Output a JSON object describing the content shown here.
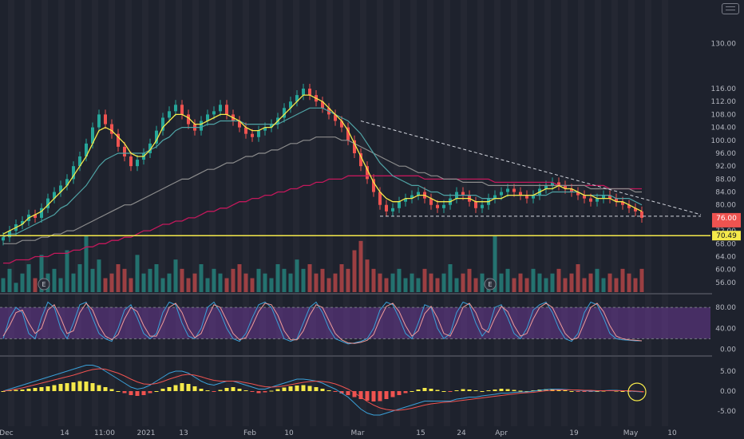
{
  "chart_data": [
    {
      "type": "candlestick",
      "title": "",
      "y_axis": {
        "tick_labels": [
          "130.00",
          "116.00",
          "112.00",
          "108.00",
          "104.00",
          "100.00",
          "96.00",
          "92.00",
          "88.00",
          "84.00",
          "80.00",
          "76.00",
          "72.00",
          "68.00",
          "64.00",
          "60.00",
          "56.00"
        ],
        "ylim": [
          53,
          138
        ]
      },
      "x_axis": {
        "tick_labels": [
          "Dec",
          "14",
          "11:00",
          "2021",
          "13",
          "Feb",
          "10",
          "Mar",
          "15",
          "24",
          "Apr",
          "19",
          "May",
          "10"
        ]
      },
      "price_labels": {
        "last_price": "76.00",
        "horizontal_line": "70.49"
      },
      "horizontal_line_value": 70.49,
      "support_line_value": 76.5,
      "close": [
        70,
        72,
        74,
        75,
        77,
        76,
        79,
        82,
        84,
        86,
        88,
        92,
        95,
        99,
        104,
        108,
        105,
        102,
        98,
        95,
        92,
        94,
        96,
        99,
        103,
        107,
        109,
        111,
        108,
        105,
        103,
        106,
        108,
        109,
        111,
        108,
        106,
        104,
        102,
        101,
        103,
        104,
        105,
        107,
        110,
        112,
        114,
        116,
        114,
        112,
        110,
        108,
        106,
        104,
        100,
        96,
        92,
        88,
        84,
        80,
        78,
        79,
        81,
        82,
        83,
        84,
        82,
        80,
        79,
        80,
        82,
        84,
        83,
        81,
        79,
        80,
        82,
        83,
        84,
        85,
        84,
        83,
        82,
        83,
        85,
        86,
        87,
        86,
        85,
        84,
        83,
        82,
        81,
        82,
        83,
        82,
        81,
        80,
        79,
        78,
        76
      ],
      "ema_fast": [
        71,
        72,
        73,
        74,
        76,
        77,
        78,
        80,
        82,
        84,
        86,
        89,
        92,
        95,
        99,
        103,
        104,
        103,
        101,
        99,
        96,
        95,
        95,
        97,
        100,
        104,
        106,
        108,
        108,
        107,
        105,
        105,
        106,
        107,
        108,
        108,
        107,
        106,
        104,
        103,
        103,
        104,
        104,
        106,
        108,
        110,
        112,
        114,
        114,
        113,
        112,
        110,
        108,
        106,
        103,
        99,
        95,
        91,
        87,
        84,
        82,
        81,
        81,
        82,
        82,
        83,
        83,
        82,
        81,
        81,
        81,
        82,
        82,
        82,
        81,
        81,
        81,
        82,
        82,
        83,
        83,
        83,
        83,
        83,
        84,
        85,
        85,
        86,
        85,
        85,
        84,
        83,
        83,
        82,
        82,
        82,
        81,
        81,
        80,
        79,
        78
      ],
      "ema_mid": [
        70,
        71,
        71,
        72,
        73,
        74,
        75,
        76,
        77,
        79,
        80,
        82,
        84,
        86,
        89,
        92,
        94,
        95,
        96,
        96,
        96,
        96,
        96,
        97,
        98,
        100,
        101,
        103,
        104,
        104,
        104,
        104,
        105,
        105,
        106,
        106,
        106,
        106,
        105,
        105,
        105,
        105,
        105,
        105,
        106,
        107,
        108,
        109,
        110,
        110,
        110,
        109,
        108,
        107,
        106,
        104,
        102,
        99,
        96,
        93,
        91,
        89,
        88,
        87,
        86,
        86,
        85,
        84,
        84,
        83,
        83,
        83,
        83,
        83,
        83,
        82,
        82,
        82,
        82,
        83,
        83,
        83,
        83,
        83,
        83,
        83,
        84,
        84,
        84,
        84,
        84,
        83,
        83,
        83,
        83,
        83,
        82,
        82,
        82,
        81,
        80
      ],
      "sma_slow": [
        68,
        68,
        68,
        69,
        69,
        69,
        70,
        70,
        71,
        71,
        72,
        72,
        73,
        74,
        75,
        76,
        77,
        78,
        79,
        80,
        80,
        81,
        82,
        83,
        84,
        85,
        86,
        87,
        88,
        88,
        89,
        90,
        91,
        91,
        92,
        93,
        93,
        94,
        95,
        95,
        96,
        96,
        97,
        97,
        98,
        99,
        99,
        100,
        100,
        101,
        101,
        101,
        101,
        100,
        100,
        99,
        98,
        97,
        96,
        95,
        94,
        93,
        92,
        92,
        91,
        90,
        90,
        89,
        89,
        88,
        88,
        88,
        87,
        87,
        87,
        87,
        86,
        86,
        86,
        86,
        86,
        86,
        86,
        86,
        86,
        86,
        86,
        86,
        86,
        86,
        86,
        86,
        85,
        85,
        85,
        85,
        85,
        85,
        85,
        84,
        84
      ],
      "sma_long": [
        62,
        62,
        63,
        63,
        63,
        64,
        64,
        64,
        65,
        65,
        65,
        66,
        66,
        67,
        67,
        68,
        68,
        69,
        69,
        70,
        70,
        71,
        72,
        72,
        73,
        74,
        74,
        75,
        75,
        76,
        76,
        77,
        78,
        78,
        79,
        79,
        80,
        81,
        81,
        82,
        82,
        83,
        83,
        84,
        84,
        85,
        85,
        86,
        86,
        87,
        87,
        88,
        88,
        88,
        89,
        89,
        89,
        89,
        89,
        89,
        89,
        89,
        89,
        89,
        89,
        89,
        88,
        88,
        88,
        88,
        88,
        88,
        88,
        88,
        88,
        88,
        88,
        87,
        87,
        87,
        87,
        87,
        87,
        87,
        87,
        87,
        87,
        86,
        86,
        86,
        86,
        86,
        86,
        86,
        86,
        85,
        85,
        85,
        85,
        85,
        85
      ],
      "volume": [
        3,
        5,
        2,
        4,
        6,
        3,
        8,
        4,
        5,
        3,
        9,
        4,
        6,
        12,
        5,
        7,
        3,
        4,
        6,
        5,
        3,
        8,
        4,
        5,
        6,
        3,
        4,
        7,
        5,
        3,
        4,
        6,
        3,
        5,
        4,
        3,
        5,
        6,
        4,
        3,
        5,
        4,
        3,
        6,
        5,
        4,
        7,
        5,
        6,
        4,
        5,
        3,
        4,
        6,
        5,
        9,
        11,
        7,
        5,
        4,
        3,
        4,
        5,
        3,
        4,
        3,
        5,
        4,
        3,
        4,
        6,
        3,
        4,
        5,
        3,
        4,
        3,
        12,
        4,
        5,
        3,
        4,
        3,
        5,
        4,
        3,
        4,
        5,
        3,
        4,
        6,
        3,
        4,
        5,
        3,
        4,
        3,
        5,
        4,
        3,
        5
      ]
    },
    {
      "type": "line",
      "title": "",
      "y_axis": {
        "tick_labels": [
          "80.00",
          "40.00",
          "0.00"
        ],
        "ylim": [
          -10,
          100
        ]
      },
      "series": [
        {
          "values": [
            20,
            60,
            80,
            70,
            30,
            20,
            60,
            90,
            80,
            40,
            20,
            50,
            85,
            90,
            60,
            30,
            20,
            15,
            40,
            75,
            85,
            60,
            30,
            20,
            30,
            70,
            90,
            85,
            50,
            25,
            20,
            40,
            80,
            90,
            70,
            40,
            20,
            15,
            30,
            60,
            85,
            90,
            80,
            50,
            20,
            15,
            20,
            50,
            80,
            90,
            70,
            40,
            20,
            15,
            10,
            12,
            15,
            20,
            40,
            75,
            90,
            85,
            60,
            30,
            20,
            50,
            85,
            80,
            40,
            20,
            30,
            70,
            90,
            85,
            50,
            25,
            40,
            80,
            85,
            60,
            30,
            20,
            40,
            75,
            85,
            90,
            70,
            40,
            20,
            15,
            30,
            70,
            90,
            85,
            60,
            30,
            20,
            18,
            17,
            16,
            16
          ]
        },
        {
          "values": [
            25,
            45,
            70,
            75,
            50,
            30,
            40,
            75,
            85,
            60,
            30,
            35,
            70,
            88,
            75,
            45,
            25,
            18,
            28,
            58,
            80,
            72,
            45,
            25,
            25,
            50,
            80,
            88,
            70,
            40,
            22,
            30,
            60,
            85,
            80,
            55,
            30,
            18,
            22,
            45,
            72,
            88,
            85,
            65,
            35,
            18,
            18,
            35,
            65,
            85,
            80,
            55,
            30,
            18,
            12,
            11,
            13,
            17,
            28,
            58,
            82,
            88,
            72,
            45,
            25,
            35,
            68,
            82,
            60,
            30,
            25,
            50,
            80,
            88,
            70,
            40,
            32,
            60,
            82,
            72,
            45,
            25,
            30,
            58,
            80,
            88,
            80,
            55,
            30,
            18,
            22,
            50,
            80,
            88,
            72,
            45,
            25,
            20,
            18,
            17,
            16
          ]
        }
      ]
    },
    {
      "type": "bar+line",
      "title": "",
      "y_axis": {
        "tick_labels": [
          "5.00",
          "0.00",
          "-5.00"
        ],
        "ylim": [
          -8,
          8
        ]
      },
      "histogram": [
        0,
        0.2,
        0.3,
        0.4,
        0.6,
        0.8,
        1,
        1.2,
        1.5,
        1.8,
        2,
        2.2,
        2.5,
        2.4,
        2,
        1.5,
        1,
        0.5,
        0,
        -0.5,
        -1,
        -1.2,
        -1,
        -0.5,
        0,
        0.6,
        1,
        1.5,
        2,
        1.8,
        1.2,
        0.6,
        0.2,
        -0.2,
        0.3,
        0.8,
        1,
        0.6,
        0.2,
        -0.2,
        -0.5,
        -0.3,
        0.1,
        0.5,
        0.9,
        1.2,
        1.4,
        1.5,
        1.3,
        1,
        0.6,
        0.2,
        -0.2,
        -0.6,
        -1,
        -1.5,
        -2,
        -2.4,
        -2.6,
        -2.5,
        -2,
        -1.5,
        -1,
        -0.5,
        0,
        0.4,
        0.8,
        0.6,
        0.3,
        0,
        -0.2,
        0.2,
        0.5,
        0.4,
        0.2,
        0,
        0.2,
        0.4,
        0.6,
        0.5,
        0.3,
        0.1,
        0,
        0.2,
        0.4,
        0.5,
        0.6,
        0.4,
        0.2,
        0,
        -0.1,
        -0.2,
        -0.1,
        0,
        0.1,
        0.2,
        0.1,
        0,
        -0.1,
        -0.2,
        -0.3
      ],
      "macd": [
        0,
        0.5,
        1,
        1.5,
        2,
        2.5,
        3,
        3.5,
        4,
        4.5,
        5,
        5.5,
        6,
        6.5,
        6.5,
        6,
        5,
        4,
        3,
        2,
        1,
        0.5,
        0.8,
        1.5,
        2.5,
        3.5,
        4.5,
        5,
        5,
        4.5,
        3.5,
        2.5,
        1.8,
        1.5,
        2,
        2.5,
        2.5,
        2,
        1.5,
        1,
        0.5,
        0.5,
        1,
        1.5,
        2,
        2.5,
        3,
        3,
        2.8,
        2.5,
        2,
        1.2,
        0.5,
        -0.5,
        -1.5,
        -3,
        -4.5,
        -5.5,
        -6,
        -6,
        -5.5,
        -5,
        -4.5,
        -4,
        -3.5,
        -3,
        -2.5,
        -2.5,
        -2.5,
        -2.5,
        -2.5,
        -2,
        -1.8,
        -1.5,
        -1.5,
        -1.2,
        -1,
        -0.8,
        -0.5,
        -0.5,
        -0.3,
        -0.2,
        -0.2,
        0,
        0.2,
        0.4,
        0.5,
        0.5,
        0.4,
        0.3,
        0.2,
        0.1,
        0,
        0,
        0.1,
        0.2,
        0.2,
        0.1,
        0,
        -0.1,
        -0.2
      ],
      "signal": [
        0,
        0.2,
        0.5,
        0.8,
        1.2,
        1.6,
        2,
        2.4,
        2.8,
        3.2,
        3.6,
        4,
        4.5,
        5,
        5.4,
        5.6,
        5.5,
        5,
        4.5,
        3.8,
        3,
        2.3,
        1.8,
        1.7,
        1.9,
        2.4,
        3,
        3.5,
        4,
        4.2,
        4,
        3.6,
        3.1,
        2.7,
        2.5,
        2.5,
        2.5,
        2.4,
        2.1,
        1.8,
        1.4,
        1.1,
        1,
        1.1,
        1.3,
        1.6,
        1.9,
        2.2,
        2.4,
        2.5,
        2.4,
        2.2,
        1.8,
        1.2,
        0.5,
        -0.4,
        -1.5,
        -2.6,
        -3.5,
        -4.2,
        -4.6,
        -4.8,
        -4.8,
        -4.6,
        -4.3,
        -3.9,
        -3.5,
        -3.2,
        -3,
        -2.8,
        -2.7,
        -2.5,
        -2.3,
        -2.1,
        -1.9,
        -1.7,
        -1.5,
        -1.3,
        -1.1,
        -0.9,
        -0.7,
        -0.5,
        -0.4,
        -0.3,
        -0.1,
        0.1,
        0.2,
        0.3,
        0.3,
        0.3,
        0.3,
        0.2,
        0.2,
        0.1,
        0.1,
        0.1,
        0.1,
        0.1,
        0.1,
        0,
        -0.1
      ]
    }
  ],
  "colors": {
    "background": "#1e222d",
    "grid": "#2a2e39",
    "up": "#26a69a",
    "down": "#ef5350",
    "ema_fast": "#f5e94a",
    "ema_mid": "#4fa3a5",
    "sma_slow": "#8c8c8c",
    "sma_long": "#c2185b",
    "sma_red": "#d32f2f",
    "hline": "#f5e94a",
    "stoch_band": "#7b3fa8",
    "stoch_k": "#3aa0d8",
    "stoch_d": "#ef9a9a",
    "macd_pos": "#f5e94a",
    "macd_neg": "#ef5350"
  },
  "earnings_markers": [
    "E",
    "E"
  ],
  "ui": {
    "menu_icon": "hamburger-icon"
  }
}
